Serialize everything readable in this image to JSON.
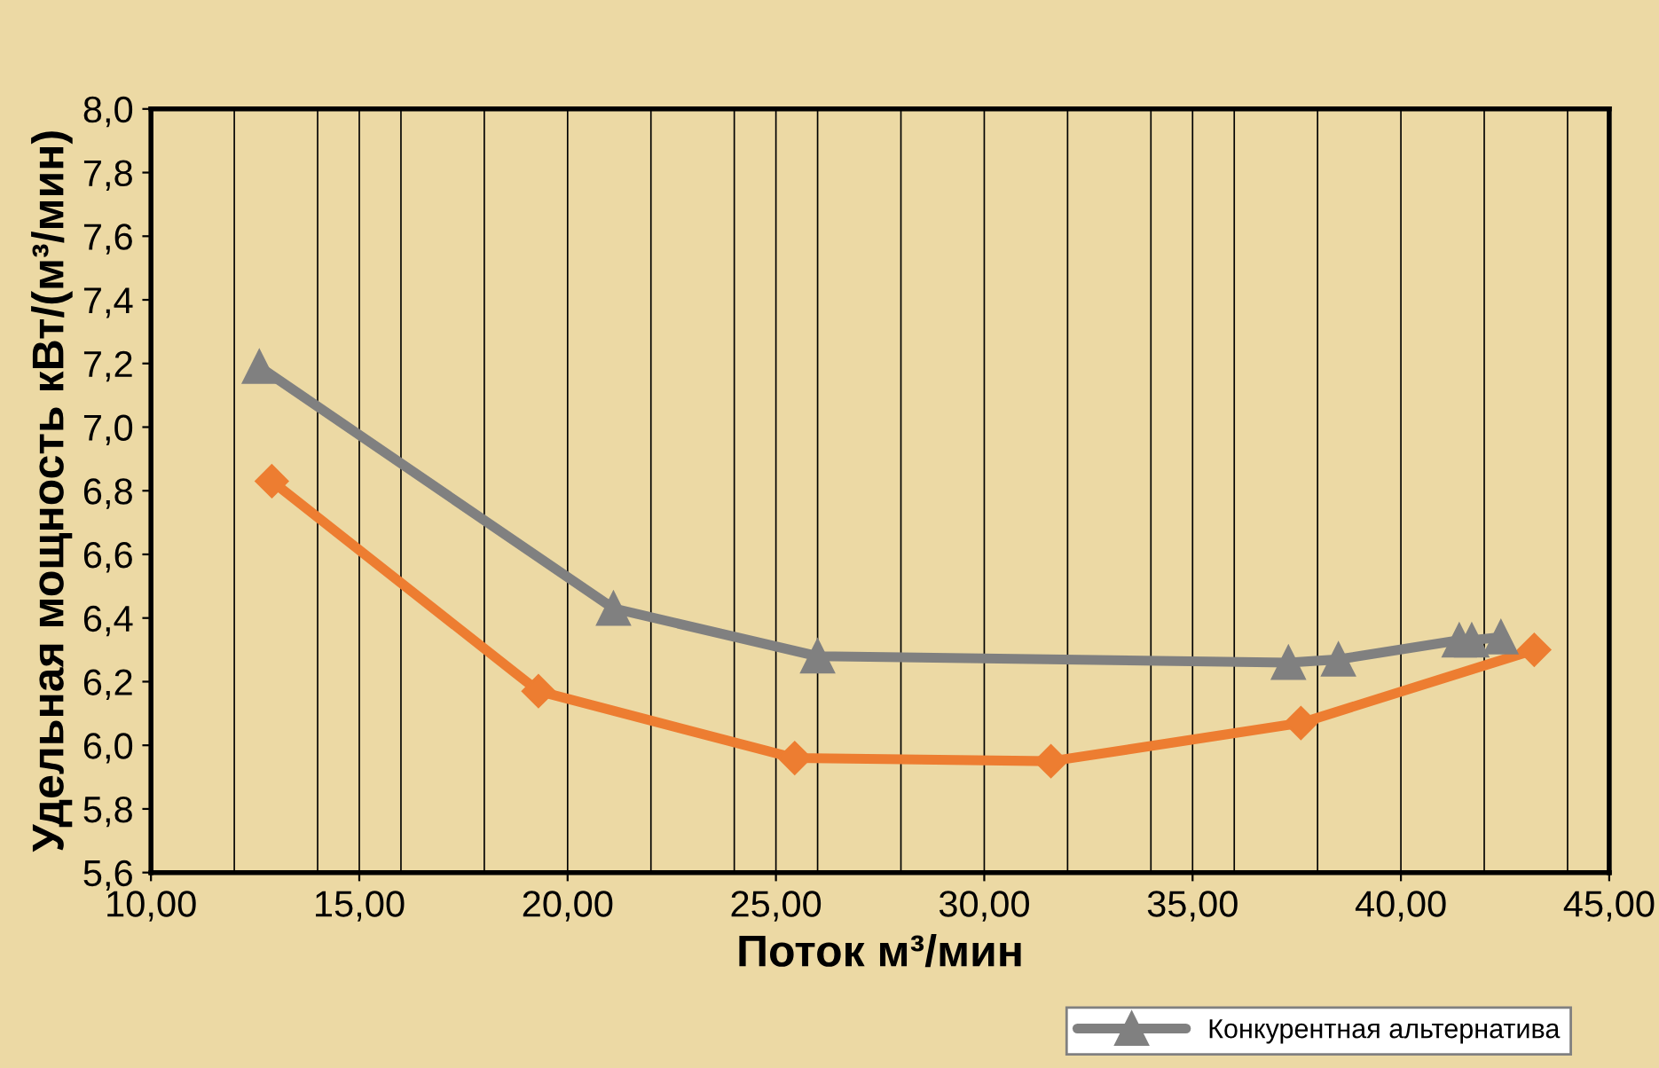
{
  "chart_data": {
    "type": "line",
    "xlabel": "Поток м³/мин",
    "ylabel": "Удельная мощность кВт/(м³/мин)",
    "xlim": [
      10,
      45
    ],
    "ylim": [
      5.6,
      8.0
    ],
    "xticks": [
      {
        "value": 10,
        "label": "10,00"
      },
      {
        "value": 12,
        "label": null
      },
      {
        "value": 14,
        "label": null
      },
      {
        "value": 15,
        "label": "15,00"
      },
      {
        "value": 16,
        "label": null
      },
      {
        "value": 18,
        "label": null
      },
      {
        "value": 20,
        "label": "20,00"
      },
      {
        "value": 22,
        "label": null
      },
      {
        "value": 24,
        "label": null
      },
      {
        "value": 25,
        "label": "25,00"
      },
      {
        "value": 26,
        "label": null
      },
      {
        "value": 28,
        "label": null
      },
      {
        "value": 30,
        "label": "30,00"
      },
      {
        "value": 32,
        "label": null
      },
      {
        "value": 34,
        "label": null
      },
      {
        "value": 35,
        "label": "35,00"
      },
      {
        "value": 36,
        "label": null
      },
      {
        "value": 38,
        "label": null
      },
      {
        "value": 40,
        "label": "40,00"
      },
      {
        "value": 42,
        "label": null
      },
      {
        "value": 44,
        "label": null
      },
      {
        "value": 45,
        "label": "45,00"
      }
    ],
    "yticks": [
      {
        "value": 5.6,
        "label": "5,6"
      },
      {
        "value": 5.8,
        "label": "5,8"
      },
      {
        "value": 6.0,
        "label": "6,0"
      },
      {
        "value": 6.2,
        "label": "6,2"
      },
      {
        "value": 6.4,
        "label": "6,4"
      },
      {
        "value": 6.6,
        "label": "6,6"
      },
      {
        "value": 6.8,
        "label": "6,8"
      },
      {
        "value": 7.0,
        "label": "7,0"
      },
      {
        "value": 7.2,
        "label": "7,2"
      },
      {
        "value": 7.4,
        "label": "7,4"
      },
      {
        "value": 7.6,
        "label": "7,6"
      },
      {
        "value": 7.8,
        "label": "7,8"
      },
      {
        "value": 8.0,
        "label": "8,0"
      }
    ],
    "grid": "x",
    "legend": "bottom right",
    "series": [
      {
        "color": "#ed7d31",
        "marker": "diamond",
        "x": [
          12.9,
          19.3,
          25.45,
          31.6,
          37.6,
          43.2
        ],
        "values": [
          6.83,
          6.17,
          5.96,
          5.95,
          6.07,
          6.3
        ]
      },
      {
        "name": "Конкурентная альтернатива",
        "color": "#808080",
        "marker": "triangle",
        "x": [
          12.6,
          21.1,
          26.0,
          37.3,
          38.5,
          41.4,
          41.7,
          42.4
        ],
        "values": [
          7.19,
          6.43,
          6.28,
          6.26,
          6.27,
          6.33,
          6.33,
          6.34
        ]
      }
    ]
  }
}
